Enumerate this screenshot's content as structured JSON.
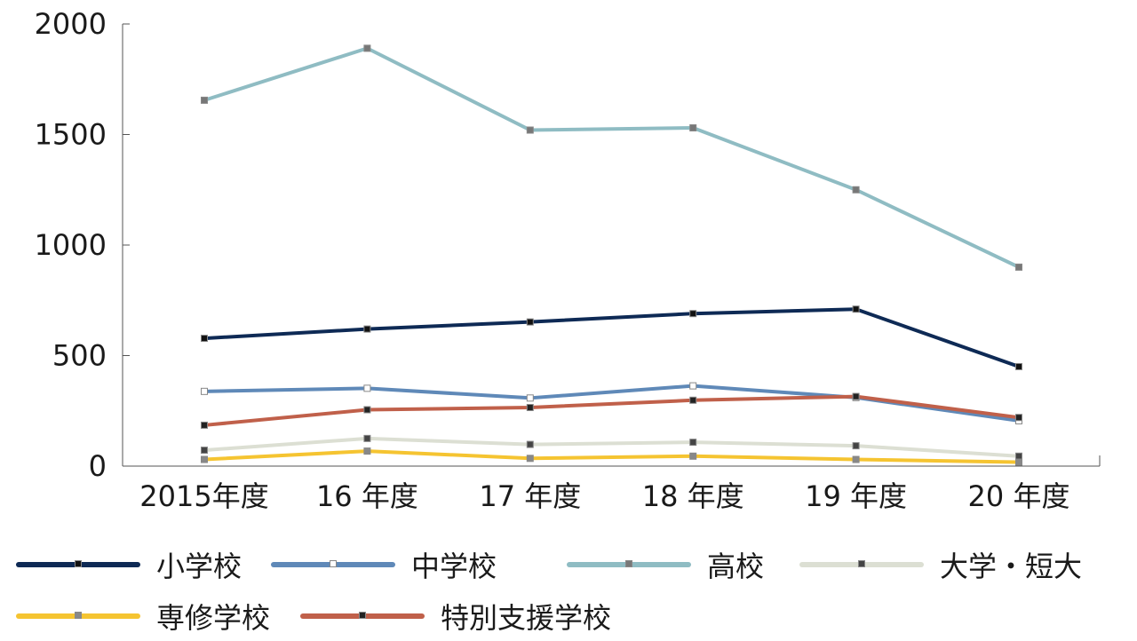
{
  "chart_data": {
    "type": "line",
    "title": "",
    "xlabel": "",
    "ylabel": "",
    "categories": [
      "2015年度",
      "16 年度",
      "17 年度",
      "18 年度",
      "19 年度",
      "20 年度"
    ],
    "ylim": [
      0,
      2000
    ],
    "yticks": [
      0,
      500,
      1000,
      1500,
      2000
    ],
    "grid": false,
    "legend_position": "bottom",
    "series": [
      {
        "name": "小学校",
        "color": "#0e2a55",
        "marker_color": "#111111",
        "values": [
          578,
          620,
          652,
          690,
          710,
          450
        ]
      },
      {
        "name": "中学校",
        "color": "#5f89b8",
        "marker_color": "#ffffff",
        "values": [
          338,
          352,
          308,
          363,
          310,
          205
        ]
      },
      {
        "name": "高校",
        "color": "#8fbcc3",
        "marker_color": "#777777",
        "values": [
          1655,
          1890,
          1520,
          1530,
          1250,
          900
        ]
      },
      {
        "name": "大学・短大",
        "color": "#dcdfd3",
        "marker_color": "#444444",
        "values": [
          72,
          125,
          98,
          108,
          92,
          45
        ]
      },
      {
        "name": "専修学校",
        "color": "#f5c431",
        "marker_color": "#888888",
        "values": [
          30,
          68,
          35,
          45,
          30,
          18
        ]
      },
      {
        "name": "特別支援学校",
        "color": "#c0604a",
        "marker_color": "#222222",
        "values": [
          185,
          255,
          265,
          298,
          315,
          220
        ]
      }
    ]
  }
}
